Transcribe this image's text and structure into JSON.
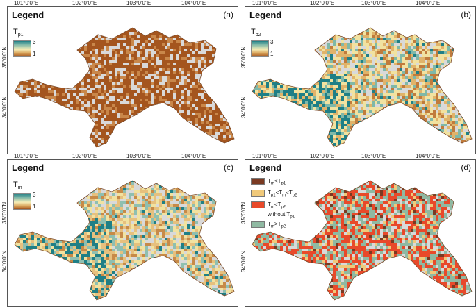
{
  "legend_title": "Legend",
  "x_ticks_top": [
    "101°0'0\"E",
    "102°0'0\"E",
    "103°0'0\"E",
    "104°0'0\"E"
  ],
  "x_ticks_bottom": [
    "101°0'0\"E",
    "102°0'0\"E",
    "103°0'0\"E",
    "104°0'0\"E"
  ],
  "y_ticks": [
    "35°0'0\"N",
    "34°0'0\"N"
  ],
  "panels": [
    {
      "label": "(a)",
      "var_main": "T",
      "var_sub": "p1",
      "ramp_max": "3",
      "ramp_min": "1"
    },
    {
      "label": "(b)",
      "var_main": "T",
      "var_sub": "p2",
      "ramp_max": "3",
      "ramp_min": "1"
    },
    {
      "label": "(c)",
      "var_main": "T",
      "var_sub": "m",
      "ramp_max": "3",
      "ramp_min": "1"
    },
    {
      "label": "(d)",
      "categories": [
        {
          "color": "#7a3a22",
          "parts": [
            "T",
            "m",
            "<T",
            "p1"
          ]
        },
        {
          "color": "#f0c97a",
          "parts": [
            "T",
            "p1",
            "<T",
            "m",
            "<T",
            "p2"
          ]
        },
        {
          "color": "#e8492a",
          "parts": [
            "T",
            "m",
            "<T",
            "p2"
          ],
          "line2_parts": [
            "without T",
            "p1"
          ]
        },
        {
          "color": "#8fb9a2",
          "parts": [
            "T",
            "m",
            ">T",
            "p2"
          ]
        }
      ]
    }
  ],
  "colors": {
    "low": "#a4551e",
    "mid": "#f6eeb8",
    "high": "#1f7f86",
    "nodata": "#d9d9d9"
  }
}
